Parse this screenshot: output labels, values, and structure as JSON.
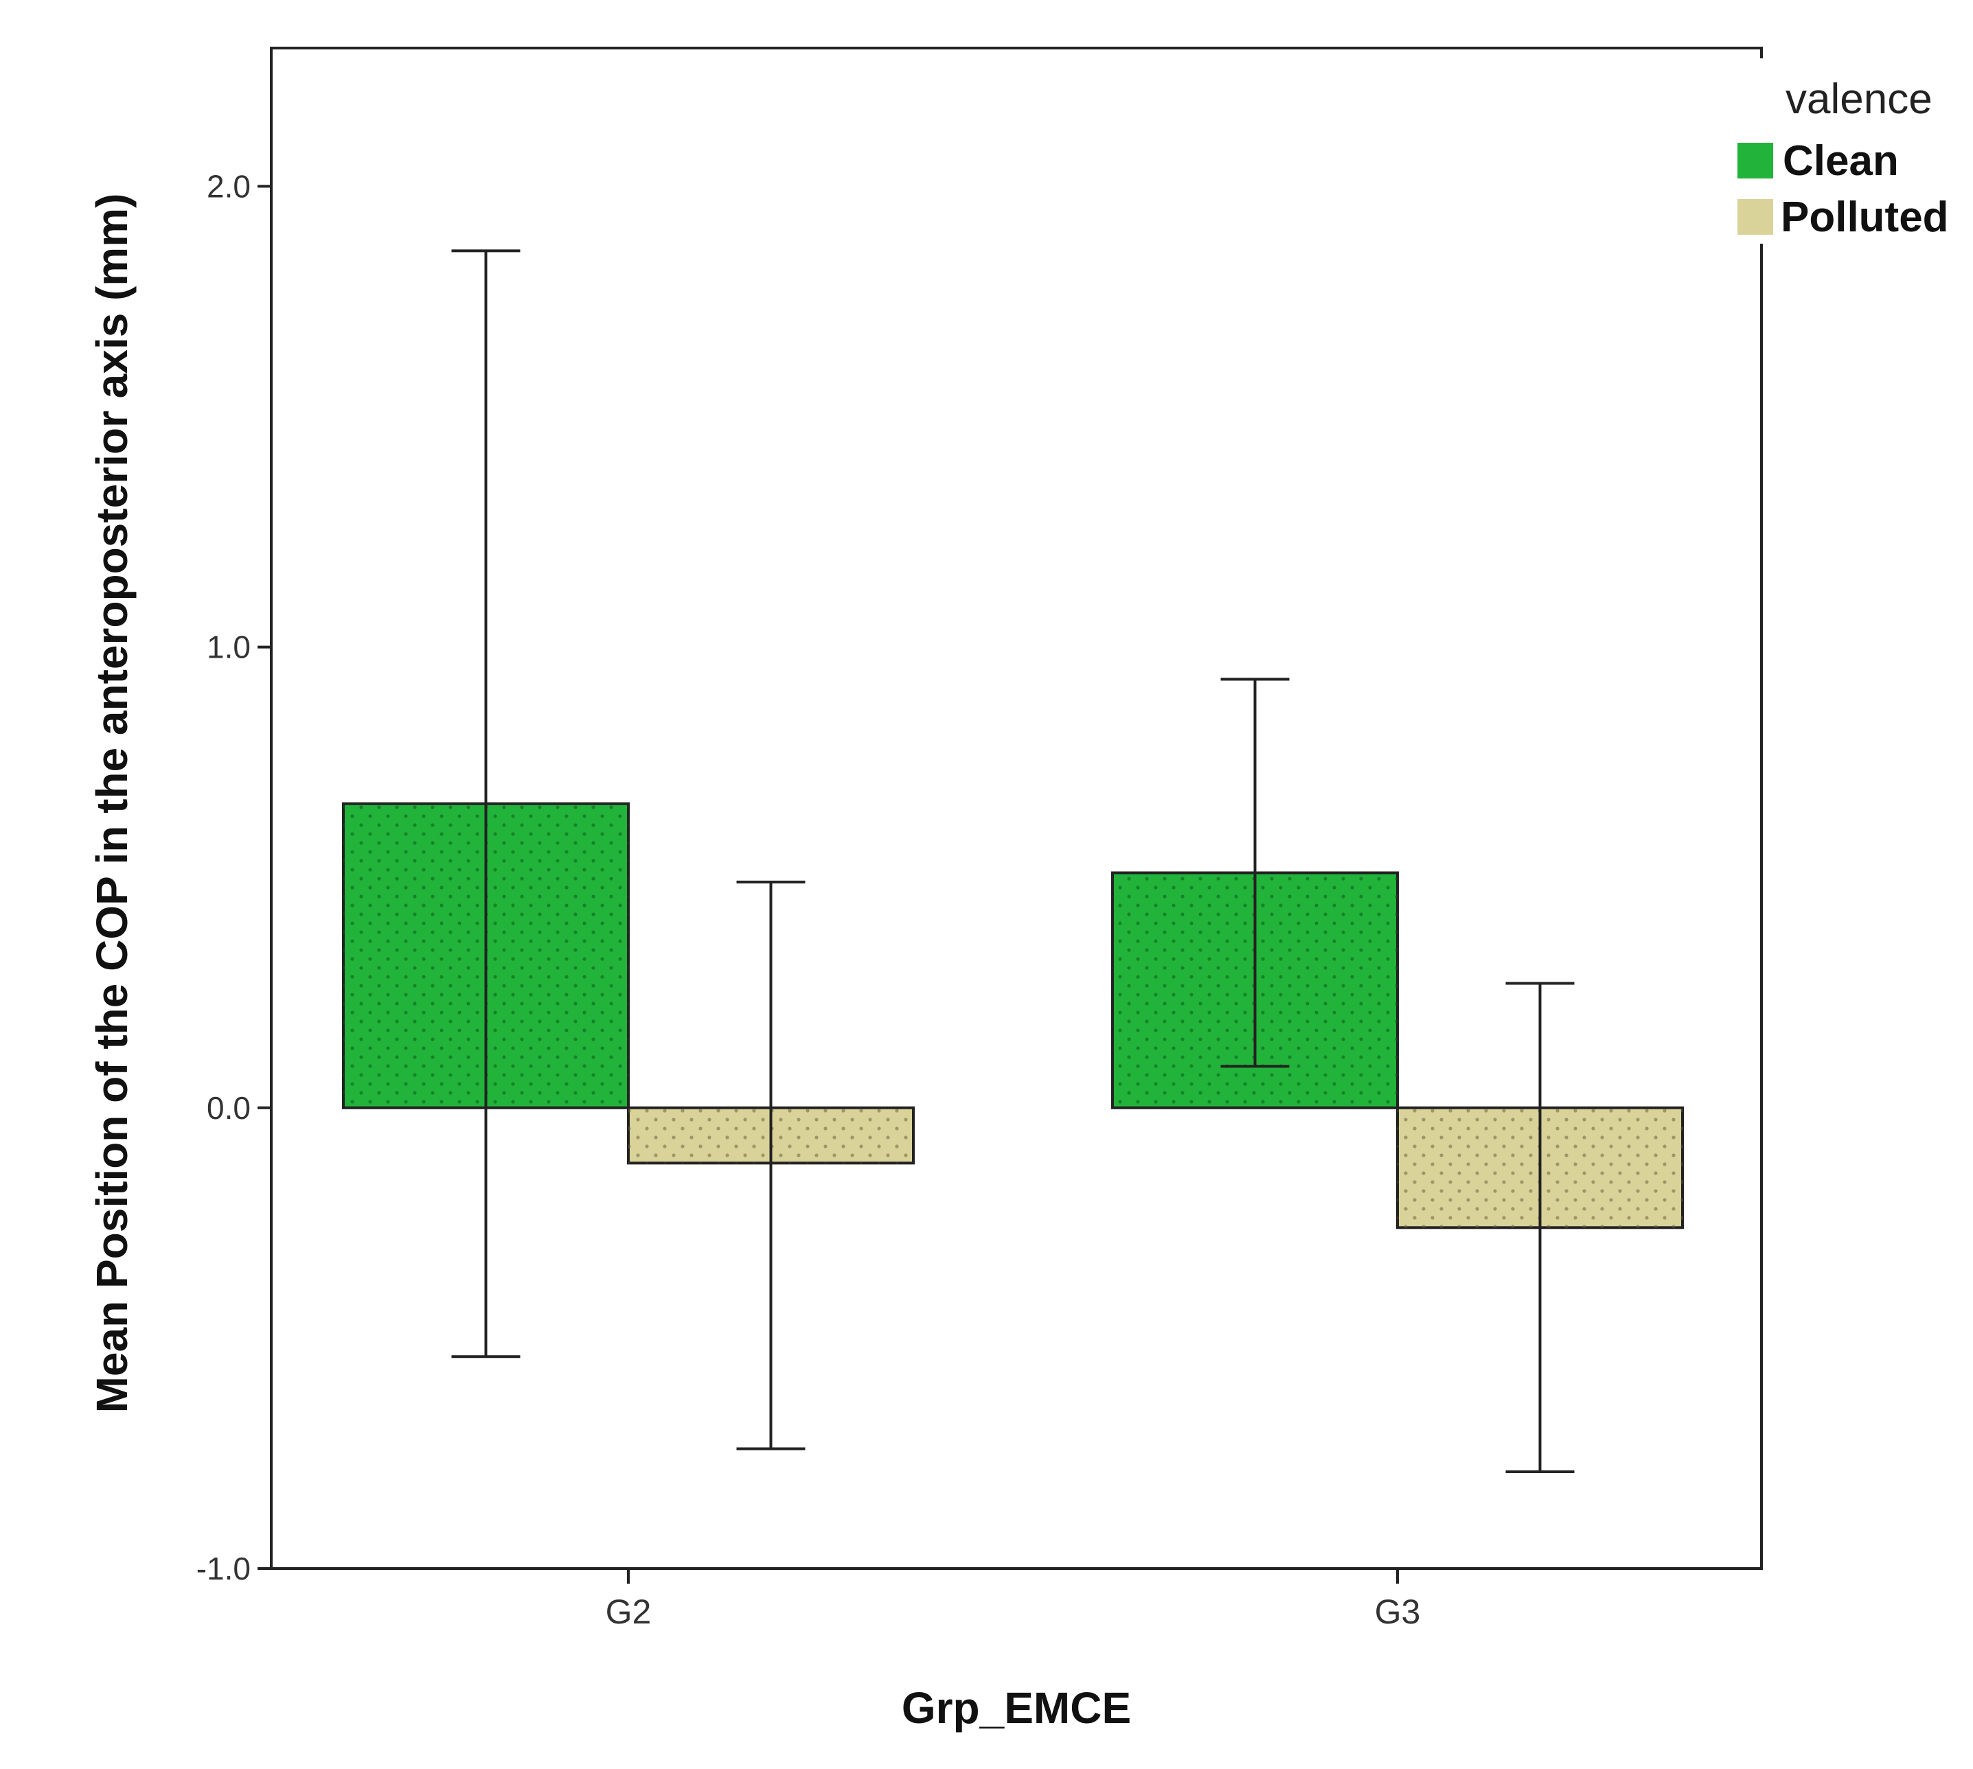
{
  "chart_data": {
    "type": "bar",
    "title": "",
    "xlabel": "Grp_EMCE",
    "ylabel": "Mean Position of the COP in the anteroposterior axis (mm)",
    "ylim": [
      -1.0,
      2.3
    ],
    "yticks": [
      -1.0,
      0.0,
      1.0,
      2.0
    ],
    "ytick_labels": [
      "-1.0",
      "0.0",
      "1.0",
      "2.0"
    ],
    "categories": [
      "G2",
      "G3"
    ],
    "legend_title": "valence",
    "legend_position": "top-right",
    "series": [
      {
        "name": "Clean",
        "color": "#22B33A",
        "values": [
          0.66,
          0.51
        ],
        "error_low": [
          -0.54,
          0.09
        ],
        "error_high": [
          1.86,
          0.93
        ]
      },
      {
        "name": "Polluted",
        "color": "#D9D399",
        "values": [
          -0.12,
          -0.26
        ],
        "error_low": [
          -0.74,
          -0.79
        ],
        "error_high": [
          0.49,
          0.27
        ]
      }
    ]
  }
}
